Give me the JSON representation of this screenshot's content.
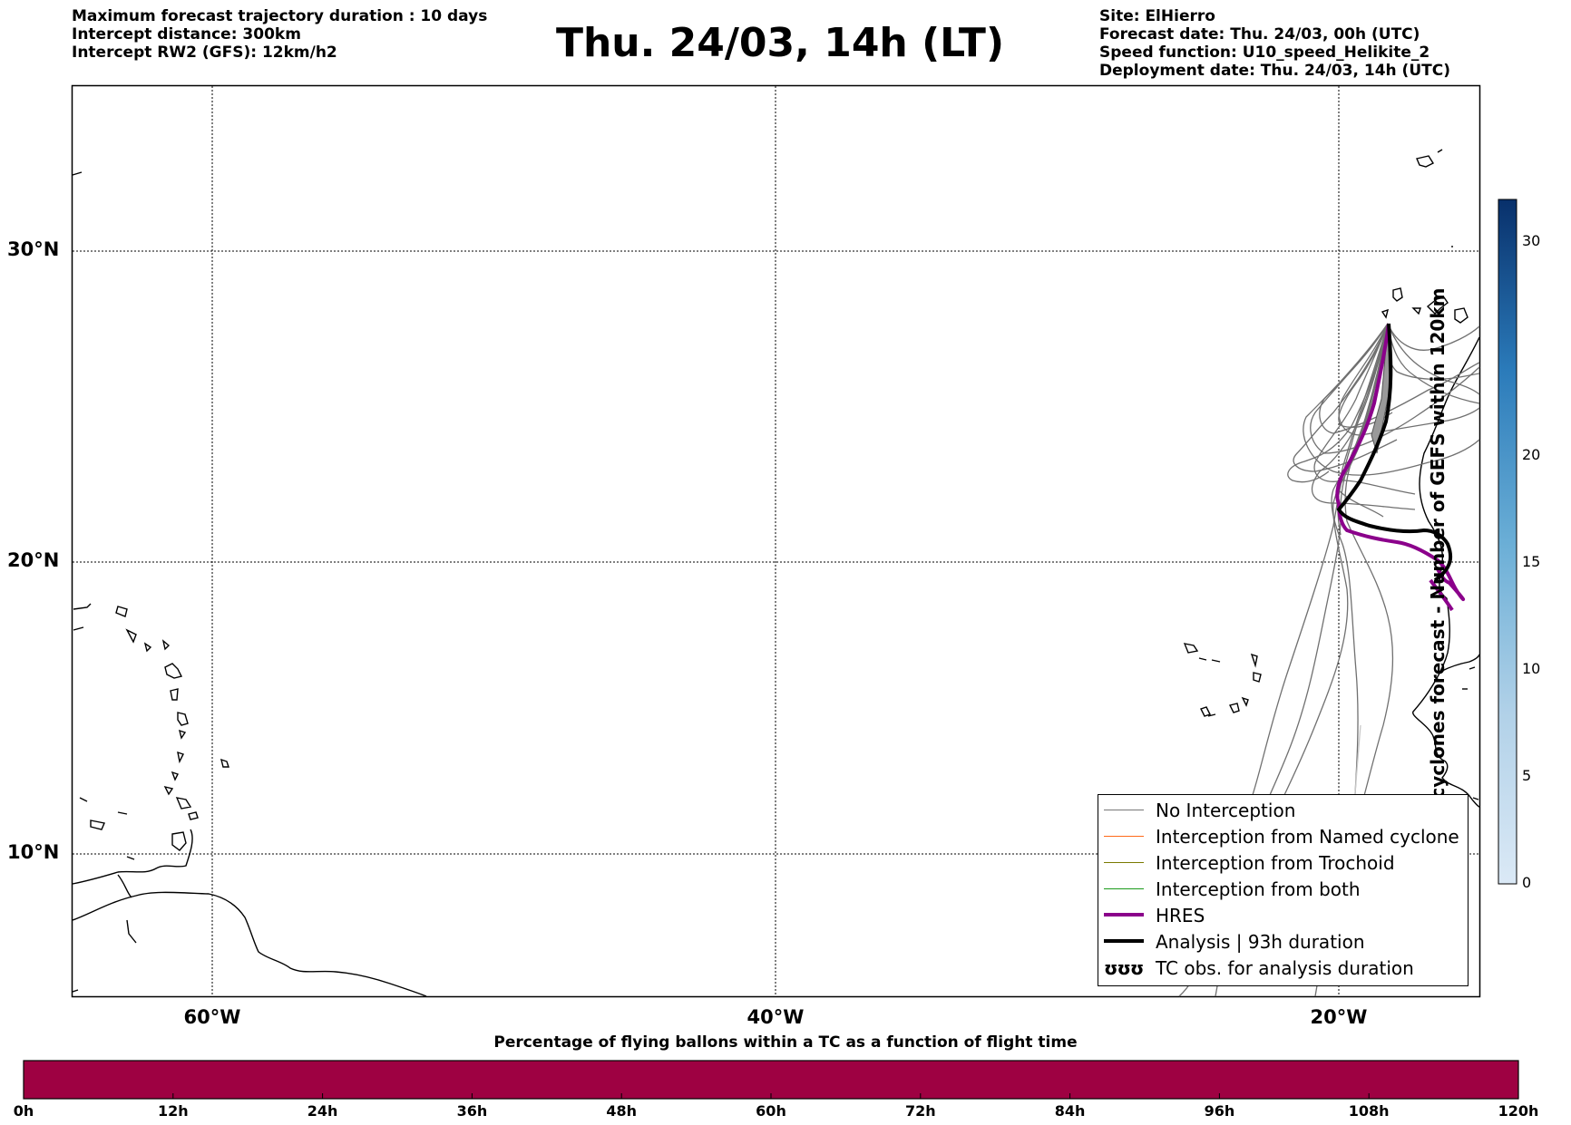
{
  "header": {
    "left": [
      "Maximum forecast trajectory duration : 10 days",
      "Intercept distance: 300km",
      "Intercept RW2 (GFS):  12km/h2"
    ],
    "title": "Thu. 24/03, 14h (LT)",
    "right": [
      "Site: ElHierro",
      "Forecast date: Thu. 24/03, 00h (UTC)",
      "Speed function: U10_speed_Helikite_2",
      "Deployment date: Thu. 24/03, 14h (UTC)"
    ]
  },
  "map": {
    "lat_labels": [
      "30°N",
      "20°N",
      "10°N"
    ],
    "lon_labels": [
      "60°W",
      "40°W",
      "20°W"
    ]
  },
  "legend": {
    "items": [
      {
        "label": "No Interception",
        "color": "#777777",
        "style": "thin"
      },
      {
        "label": "Interception from Named cyclone",
        "color": "#ff6a1a",
        "style": "thin"
      },
      {
        "label": "Interception from Trochoid",
        "color": "#7a7a00",
        "style": "thin"
      },
      {
        "label": "Interception from both",
        "color": "#1a9a1a",
        "style": "thin"
      },
      {
        "label": "HRES",
        "color": "#8b008b",
        "style": "thick"
      },
      {
        "label": "Analysis | 93h duration",
        "color": "#000000",
        "style": "thick"
      },
      {
        "label": "TC obs. for analysis duration",
        "color": "#000000",
        "style": "symbol",
        "symbol": "ʊʊʊ"
      }
    ]
  },
  "colorbar": {
    "label": "Named cyclones forecast - Number of GEFS within 120km",
    "ticks": [
      "0",
      "5",
      "10",
      "15",
      "20",
      "30"
    ],
    "colors": {
      "low": "#dbe9f6",
      "high": "#08306b"
    }
  },
  "bottom_bar": {
    "title": "Percentage of flying ballons within a TC as a function of flight time",
    "ticks": [
      "0h",
      "12h",
      "24h",
      "36h",
      "48h",
      "60h",
      "72h",
      "84h",
      "96h",
      "108h",
      "120h"
    ],
    "color": "#9e0142"
  }
}
